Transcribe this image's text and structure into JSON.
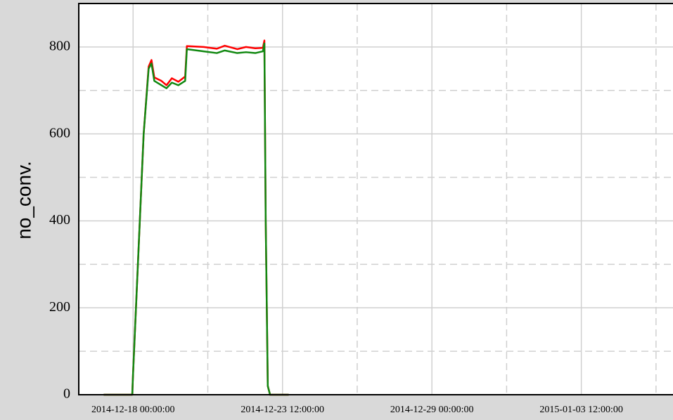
{
  "chart_data": {
    "type": "line",
    "ylabel": "no_conv.",
    "x": [
      "2014-12-16 22:00:00",
      "2014-12-17 23:15:00",
      "2014-12-18 00:00:00",
      "2014-12-18 09:20:00",
      "2014-12-18 13:45:00",
      "2014-12-18 16:15:00",
      "2014-12-18 18:45:00",
      "2014-12-19 01:00:00",
      "2014-12-19 05:30:00",
      "2014-12-19 10:15:00",
      "2014-12-19 16:00:00",
      "2014-12-19 22:00:00",
      "2014-12-19 23:30:00",
      "2014-12-20 14:20:00",
      "2014-12-21 02:00:00",
      "2014-12-21 09:00:00",
      "2014-12-21 20:00:00",
      "2014-12-22 03:45:00",
      "2014-12-22 12:00:00",
      "2014-12-22 18:40:00",
      "2014-12-22 20:00:00",
      "2014-12-22 21:10:00",
      "2014-12-22 23:00:00",
      "2014-12-23 01:00:00",
      "2014-12-23 17:30:00"
    ],
    "series": [
      {
        "name": "red",
        "color": "#ff0000",
        "values": [
          0,
          0,
          50,
          600,
          755,
          770,
          730,
          722,
          712,
          728,
          720,
          732,
          802,
          800,
          796,
          803,
          795,
          800,
          797,
          798,
          815,
          400,
          20,
          0,
          0
        ]
      },
      {
        "name": "green",
        "color": "#118811",
        "values": [
          0,
          0,
          50,
          600,
          750,
          762,
          722,
          712,
          705,
          718,
          712,
          722,
          795,
          790,
          786,
          792,
          786,
          788,
          786,
          790,
          808,
          400,
          20,
          0,
          0
        ]
      }
    ],
    "xlim": [
      "2014-12-16 00:00:00",
      "2015-01-06 21:00:00"
    ],
    "xticks": [
      "2014-12-18 00:00:00",
      "2014-12-23 12:00:00",
      "2014-12-29 00:00:00",
      "2015-01-03 12:00:00"
    ],
    "xminorticks": [
      "2014-12-20 18:00:00",
      "2014-12-26 06:00:00",
      "2014-12-31 18:00:00",
      "2015-01-06 06:00:00"
    ],
    "ylim": [
      0,
      900
    ],
    "yticks": [
      0,
      200,
      400,
      600,
      800
    ],
    "yminorticks": [
      100,
      300,
      500,
      700
    ],
    "grid": true
  }
}
